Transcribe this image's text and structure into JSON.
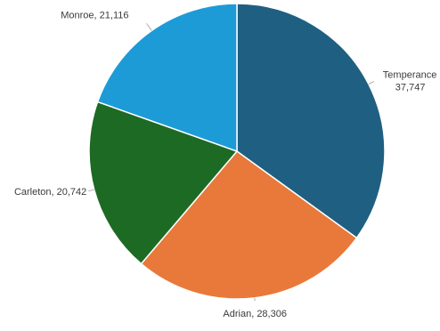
{
  "chart_data": {
    "type": "pie",
    "title": "",
    "slices": [
      {
        "label": "Temperance",
        "value": 37747,
        "display_value": "37,747",
        "color": "#1f5f82"
      },
      {
        "label": "Adrian",
        "value": 28306,
        "display_value": "28,306",
        "color": "#e8793a"
      },
      {
        "label": "Carleton",
        "value": 20742,
        "display_value": "20,742",
        "color": "#1d6a24"
      },
      {
        "label": "Monroe",
        "value": 21116,
        "display_value": "21,116",
        "color": "#1d9bd7"
      }
    ],
    "legend": "none",
    "start": "top, clockwise"
  }
}
